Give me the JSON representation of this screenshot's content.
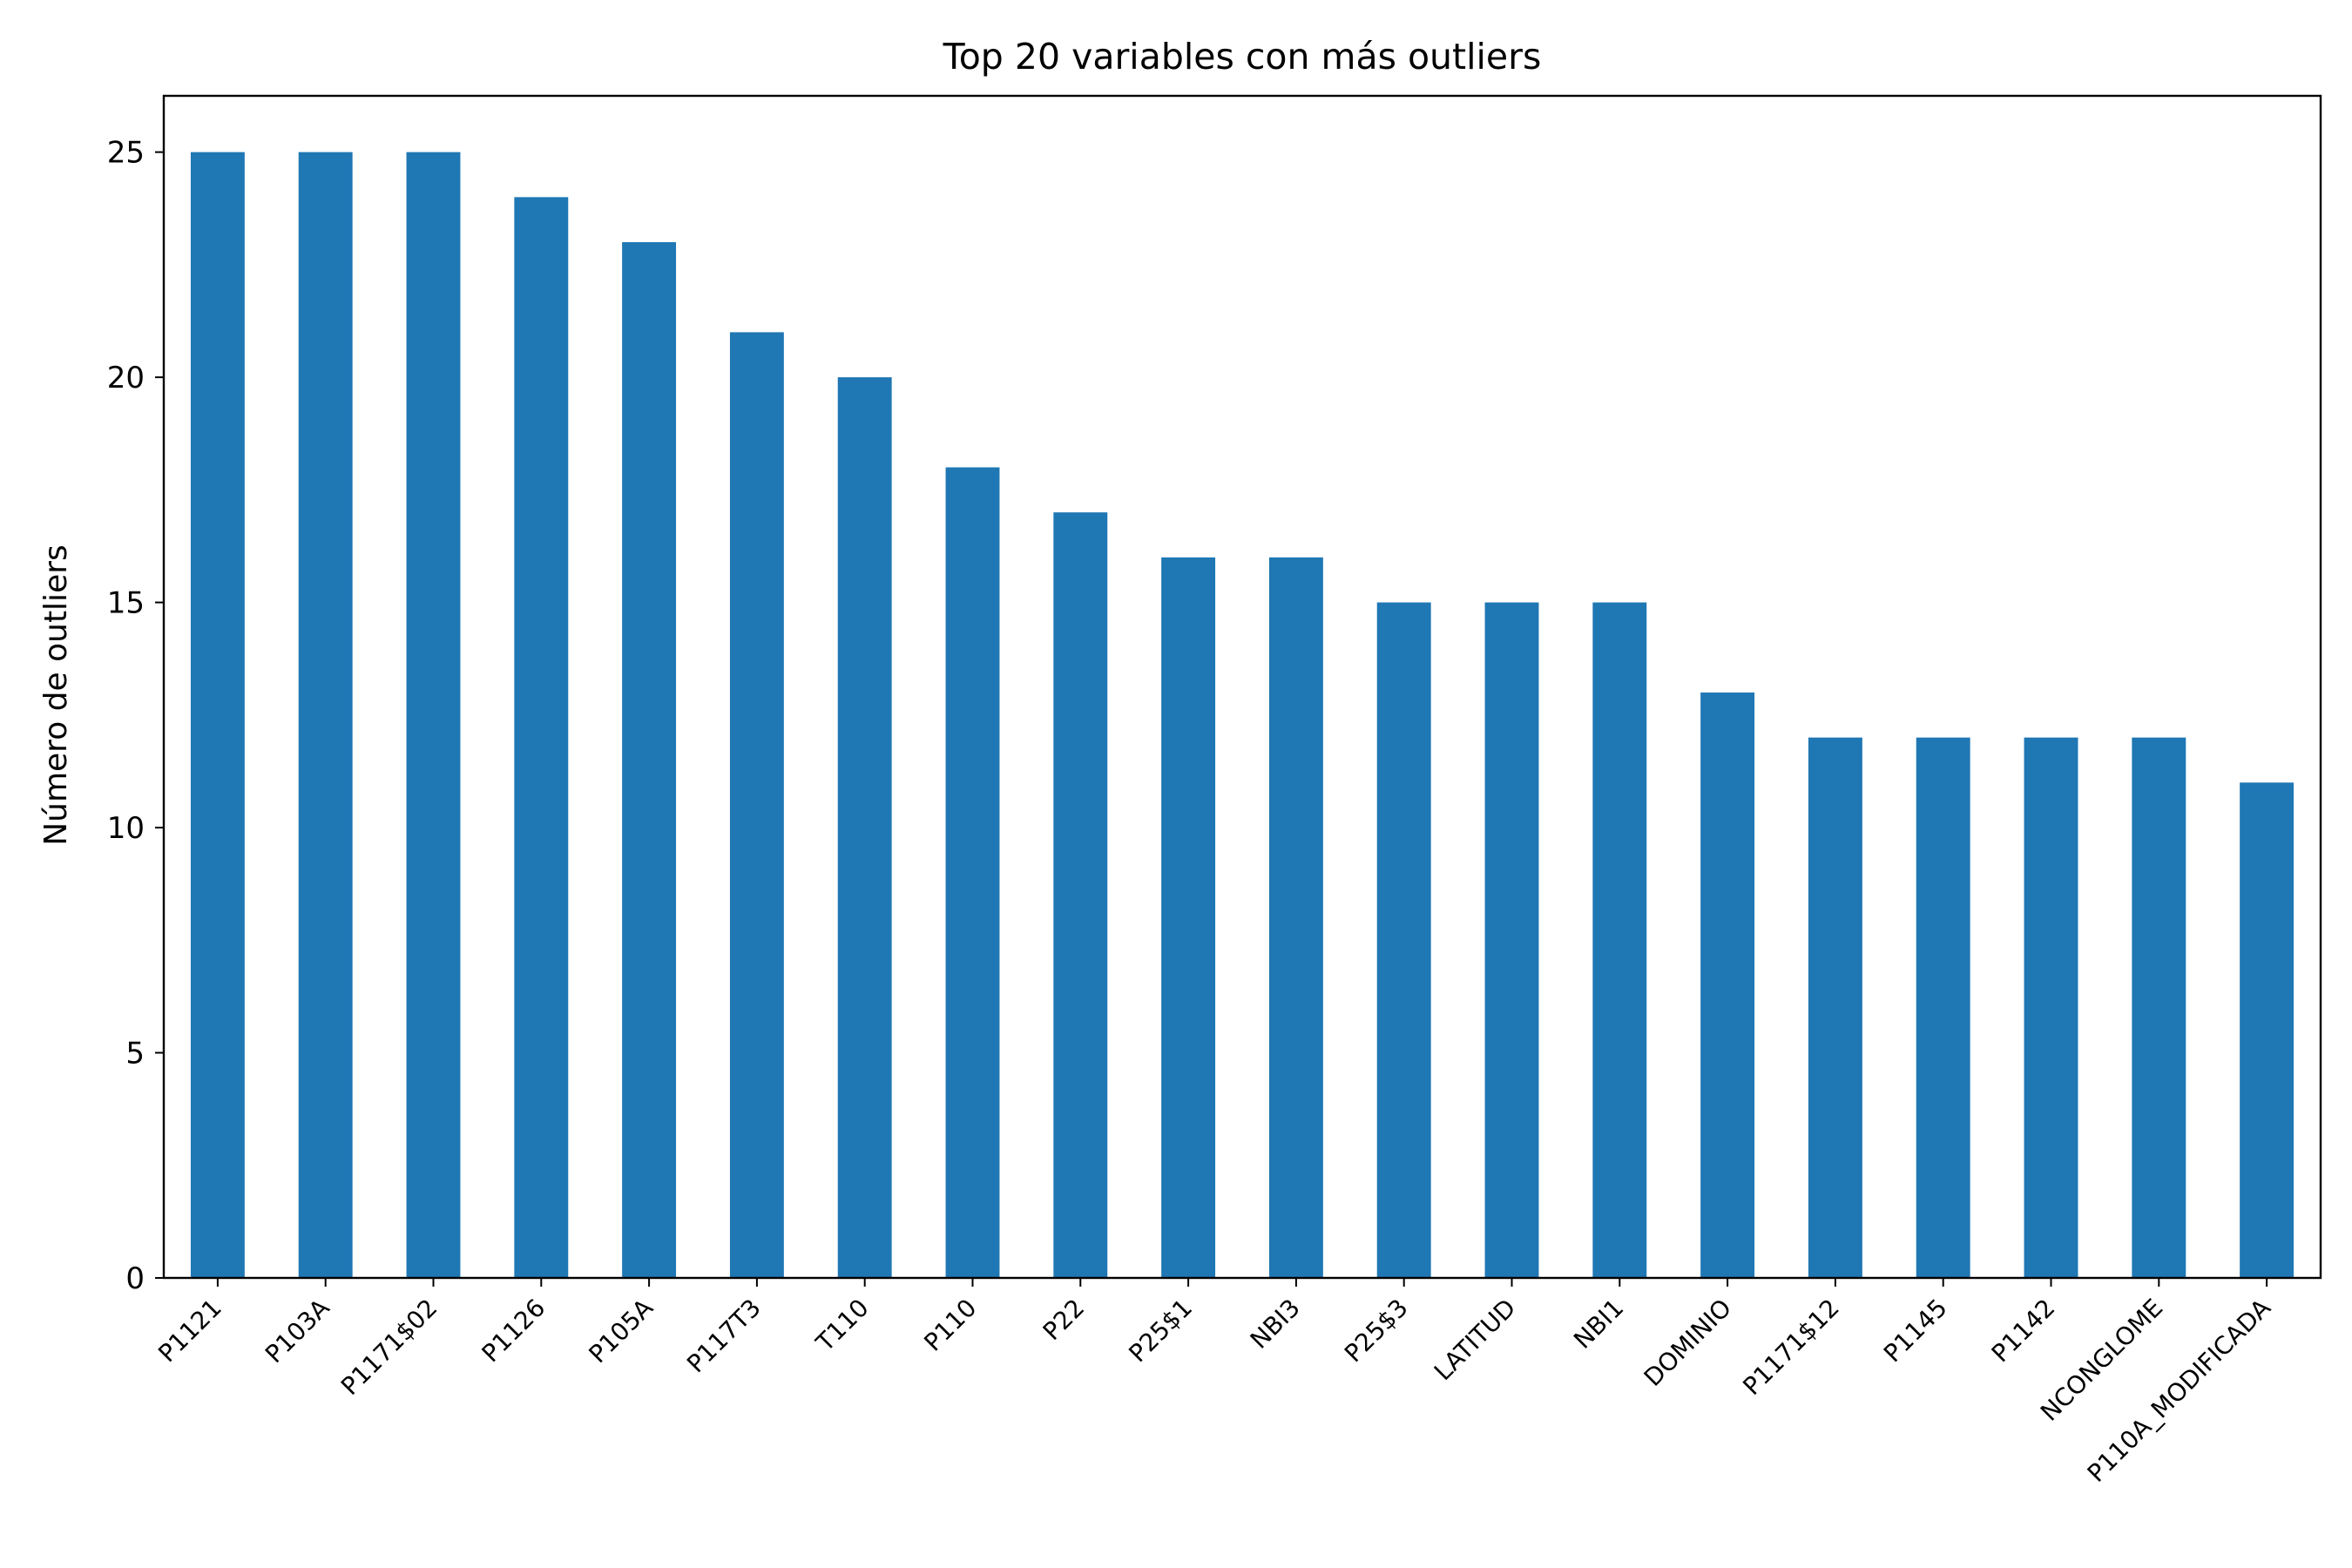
{
  "chart_data": {
    "type": "bar",
    "title": "Top 20 variables con más outliers",
    "xlabel": "",
    "ylabel": "Número de outliers",
    "categories": [
      "P1121",
      "P103A",
      "P1171$02",
      "P1126",
      "P105A",
      "P117T3",
      "T110",
      "P110",
      "P22",
      "P25$1",
      "NBI3",
      "P25$3",
      "LATITUD",
      "NBI1",
      "DOMINIO",
      "P1171$12",
      "P1145",
      "P1142",
      "NCONGLOME",
      "P110A_MODIFICADA"
    ],
    "values": [
      25,
      25,
      25,
      24,
      23,
      21,
      20,
      18,
      17,
      16,
      16,
      15,
      15,
      15,
      13,
      12,
      12,
      12,
      12,
      11
    ],
    "ylim": [
      0,
      26.25
    ],
    "yticks": [
      0,
      5,
      10,
      15,
      20,
      25
    ],
    "bar_color": "#1f77b4",
    "grid": false,
    "legend": "none"
  }
}
